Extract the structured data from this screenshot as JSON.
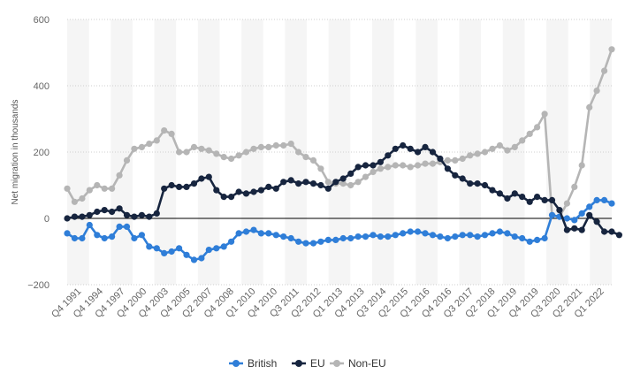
{
  "chart_data": {
    "type": "line",
    "title": "",
    "xlabel": "",
    "ylabel": "Net migration in thousands",
    "ylim": [
      -200,
      600
    ],
    "yticks": [
      600,
      400,
      200,
      0,
      -200
    ],
    "grid": true,
    "legend_position": "bottom-center",
    "x_tick_labels": [
      "Q4 1991",
      "Q4 1994",
      "Q4 1997",
      "Q4 2000",
      "Q4 2003",
      "Q4 2005",
      "Q2 2007",
      "Q4 2008",
      "Q1 2010",
      "Q4 2010",
      "Q3 2011",
      "Q2 2012",
      "Q1 2013",
      "Q4 2013",
      "Q3 2014",
      "Q2 2015",
      "Q1 2016",
      "Q4 2016",
      "Q3 2017",
      "Q2 2018",
      "Q1 2019",
      "Q4 2019",
      "Q3 2020",
      "Q2 2021",
      "Q1 2022"
    ],
    "series": [
      {
        "name": "British",
        "color": "#2f7ed8",
        "values": [
          -45,
          -60,
          -60,
          -20,
          -50,
          -60,
          -55,
          -25,
          -25,
          -60,
          -50,
          -85,
          -90,
          -105,
          -100,
          -90,
          -110,
          -125,
          -120,
          -95,
          -90,
          -85,
          -70,
          -45,
          -40,
          -35,
          -45,
          -45,
          -50,
          -55,
          -60,
          -70,
          -75,
          -75,
          -70,
          -65,
          -65,
          -60,
          -60,
          -55,
          -55,
          -50,
          -55,
          -55,
          -50,
          -45,
          -40,
          -40,
          -45,
          -50,
          -55,
          -60,
          -55,
          -50,
          -50,
          -55,
          -50,
          -45,
          -40,
          -45,
          -55,
          -60,
          -70,
          -65,
          -60,
          10,
          5,
          0,
          -5,
          15,
          35,
          55,
          55,
          45
        ]
      },
      {
        "name": "EU",
        "color": "#17253f",
        "values": [
          0,
          5,
          5,
          10,
          20,
          25,
          20,
          30,
          10,
          5,
          10,
          5,
          15,
          90,
          100,
          95,
          95,
          105,
          120,
          125,
          85,
          65,
          65,
          80,
          75,
          80,
          85,
          95,
          90,
          110,
          115,
          105,
          110,
          105,
          100,
          90,
          110,
          120,
          135,
          155,
          160,
          160,
          170,
          190,
          210,
          220,
          210,
          200,
          215,
          200,
          180,
          150,
          130,
          120,
          105,
          105,
          100,
          85,
          75,
          60,
          75,
          65,
          50,
          65,
          55,
          55,
          25,
          -35,
          -30,
          -35,
          10,
          -10,
          -40,
          -40,
          -50
        ]
      },
      {
        "name": "Non-EU",
        "color": "#b5b5b5",
        "values": [
          90,
          50,
          60,
          85,
          100,
          90,
          90,
          130,
          175,
          210,
          215,
          225,
          235,
          265,
          255,
          200,
          200,
          215,
          210,
          205,
          195,
          185,
          180,
          190,
          200,
          210,
          215,
          215,
          220,
          220,
          225,
          200,
          185,
          175,
          150,
          110,
          105,
          105,
          100,
          110,
          125,
          140,
          150,
          155,
          160,
          160,
          155,
          160,
          165,
          165,
          170,
          175,
          175,
          180,
          190,
          195,
          200,
          210,
          220,
          205,
          215,
          235,
          255,
          275,
          315,
          10,
          5,
          45,
          95,
          160,
          335,
          385,
          445,
          510
        ]
      }
    ]
  },
  "legend": {
    "british_label": "British",
    "eu_label": "EU",
    "noneu_label": "Non-EU"
  }
}
